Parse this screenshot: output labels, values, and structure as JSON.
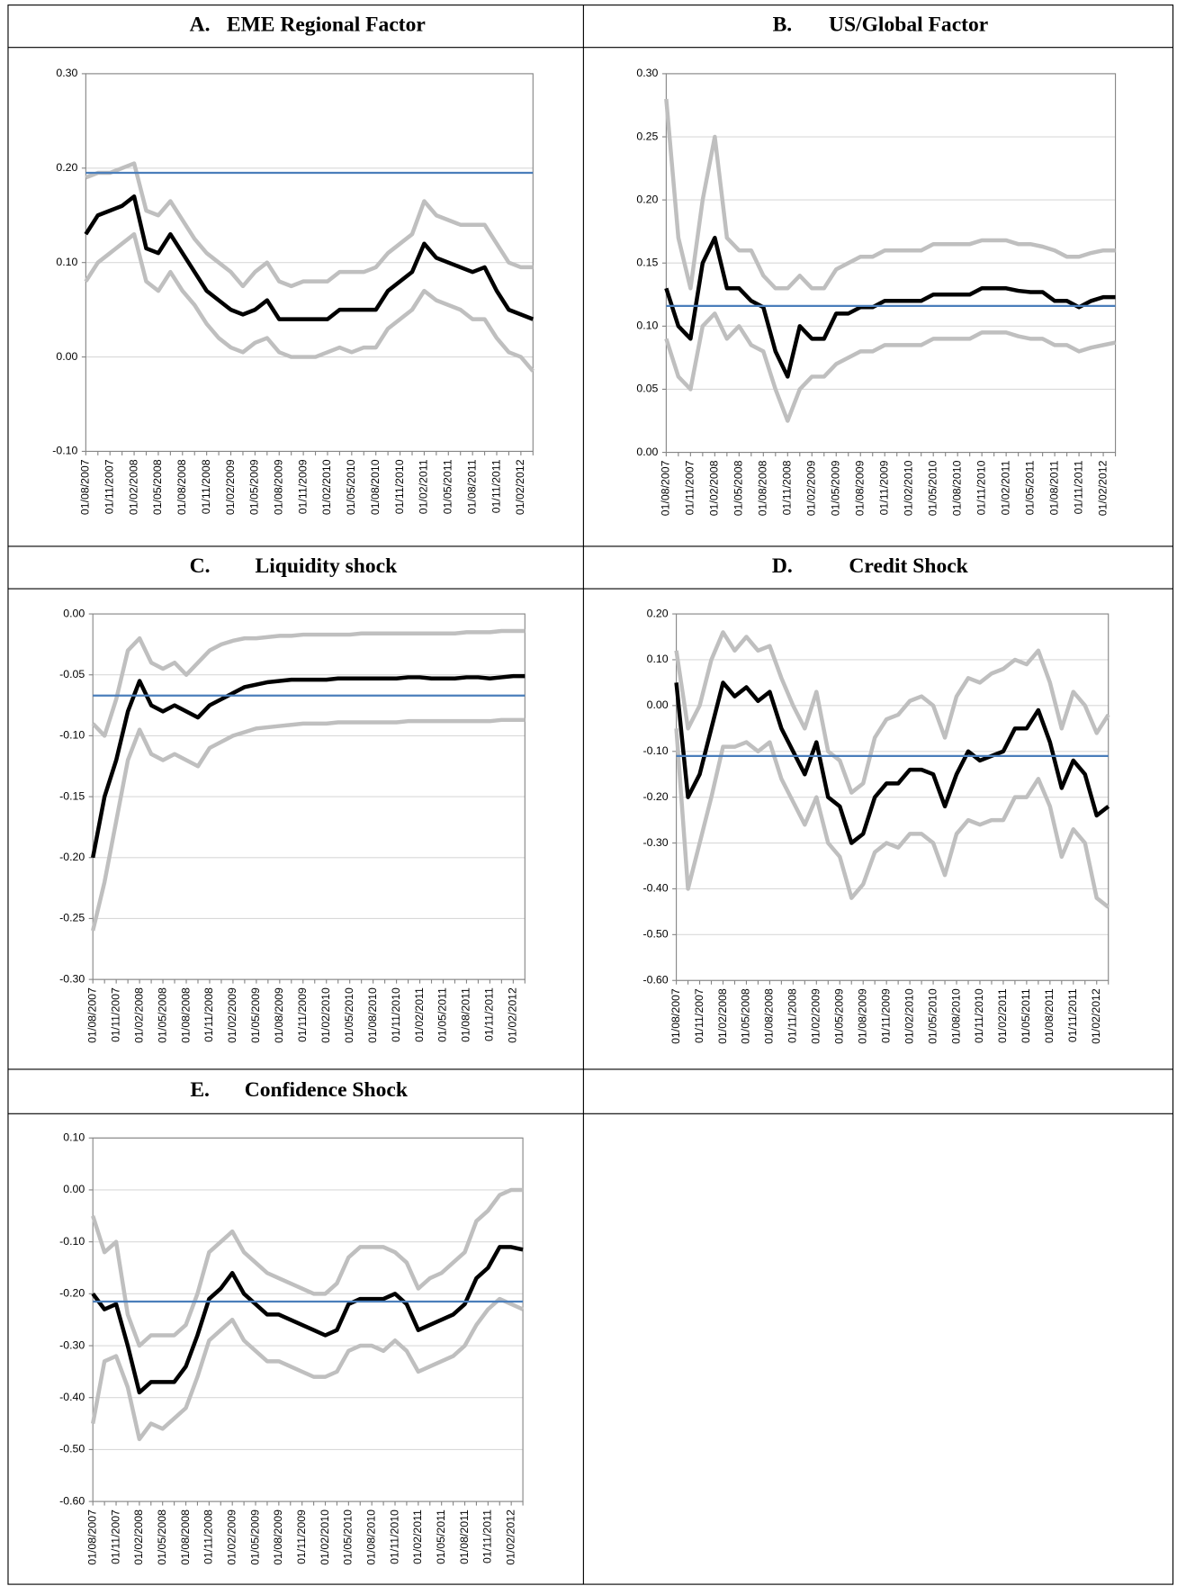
{
  "chart_data": [
    {
      "type": "line",
      "panel": "A.",
      "title": "EME Regional Factor",
      "categories": [
        "01/08/2007",
        null,
        "01/11/2007",
        null,
        "01/02/2008",
        null,
        "01/05/2008",
        null,
        "01/08/2008",
        null,
        "01/11/2008",
        null,
        "01/02/2009",
        null,
        "01/05/2009",
        null,
        "01/08/2009",
        null,
        "01/11/2009",
        null,
        "01/02/2010",
        null,
        "01/05/2010",
        null,
        "01/08/2010",
        null,
        "01/11/2010",
        null,
        "01/02/2011",
        null,
        "01/05/2011",
        null,
        "01/08/2011",
        null,
        "01/11/2011",
        null,
        "01/02/2012",
        null
      ],
      "series": [
        {
          "color": "#bfbfbf",
          "values": [
            0.19,
            0.195,
            0.195,
            0.2,
            0.205,
            0.155,
            0.15,
            0.165,
            0.145,
            0.125,
            0.11,
            0.1,
            0.09,
            0.075,
            0.09,
            0.1,
            0.08,
            0.075,
            0.08,
            0.08,
            0.08,
            0.09,
            0.09,
            0.09,
            0.095,
            0.11,
            0.12,
            0.13,
            0.165,
            0.15,
            0.145,
            0.14,
            0.14,
            0.14,
            0.12,
            0.1,
            0.095,
            0.095
          ]
        },
        {
          "color": "#bfbfbf",
          "values": [
            0.08,
            0.1,
            0.11,
            0.12,
            0.13,
            0.08,
            0.07,
            0.09,
            0.07,
            0.055,
            0.035,
            0.02,
            0.01,
            0.005,
            0.015,
            0.02,
            0.005,
            0.0,
            0.0,
            0.0,
            0.005,
            0.01,
            0.005,
            0.01,
            0.01,
            0.03,
            0.04,
            0.05,
            0.07,
            0.06,
            0.055,
            0.05,
            0.04,
            0.04,
            0.02,
            0.005,
            0.0,
            -0.015
          ]
        },
        {
          "color": "#000000",
          "values": [
            0.13,
            0.15,
            0.155,
            0.16,
            0.17,
            0.115,
            0.11,
            0.13,
            0.11,
            0.09,
            0.07,
            0.06,
            0.05,
            0.045,
            0.05,
            0.06,
            0.04,
            0.04,
            0.04,
            0.04,
            0.04,
            0.05,
            0.05,
            0.05,
            0.05,
            0.07,
            0.08,
            0.09,
            0.12,
            0.105,
            0.1,
            0.095,
            0.09,
            0.095,
            0.07,
            0.05,
            0.045,
            0.04
          ]
        }
      ],
      "hline": {
        "value": 0.195,
        "color": "#4a7ebb"
      },
      "ylim": [
        -0.1,
        0.3
      ],
      "yticks": [
        {
          "value": -0.1,
          "label": "-0.10"
        },
        {
          "value": 0,
          "label": "0.00"
        },
        {
          "value": 0.1,
          "label": "0.10"
        },
        {
          "value": 0.2,
          "label": "0.20"
        },
        {
          "value": 0.3,
          "label": "0.30"
        }
      ],
      "grid": true
    },
    {
      "type": "line",
      "panel": "B.",
      "title": "US/Global Factor",
      "categories": [
        "01/08/2007",
        null,
        "01/11/2007",
        null,
        "01/02/2008",
        null,
        "01/05/2008",
        null,
        "01/08/2008",
        null,
        "01/11/2008",
        null,
        "01/02/2009",
        null,
        "01/05/2009",
        null,
        "01/08/2009",
        null,
        "01/11/2009",
        null,
        "01/02/2010",
        null,
        "01/05/2010",
        null,
        "01/08/2010",
        null,
        "01/11/2010",
        null,
        "01/02/2011",
        null,
        "01/05/2011",
        null,
        "01/08/2011",
        null,
        "01/11/2011",
        null,
        "01/02/2012",
        null
      ],
      "series": [
        {
          "color": "#bfbfbf",
          "values": [
            0.28,
            0.17,
            0.13,
            0.2,
            0.25,
            0.17,
            0.16,
            0.16,
            0.14,
            0.13,
            0.13,
            0.14,
            0.13,
            0.13,
            0.145,
            0.15,
            0.155,
            0.155,
            0.16,
            0.16,
            0.16,
            0.16,
            0.165,
            0.165,
            0.165,
            0.165,
            0.168,
            0.168,
            0.168,
            0.165,
            0.165,
            0.163,
            0.16,
            0.155,
            0.155,
            0.158,
            0.16,
            0.16
          ]
        },
        {
          "color": "#bfbfbf",
          "values": [
            0.09,
            0.06,
            0.05,
            0.1,
            0.11,
            0.09,
            0.1,
            0.085,
            0.08,
            0.05,
            0.025,
            0.05,
            0.06,
            0.06,
            0.07,
            0.075,
            0.08,
            0.08,
            0.085,
            0.085,
            0.085,
            0.085,
            0.09,
            0.09,
            0.09,
            0.09,
            0.095,
            0.095,
            0.095,
            0.092,
            0.09,
            0.09,
            0.085,
            0.085,
            0.08,
            0.083,
            0.085,
            0.087
          ]
        },
        {
          "color": "#000000",
          "values": [
            0.13,
            0.1,
            0.09,
            0.15,
            0.17,
            0.13,
            0.13,
            0.12,
            0.115,
            0.08,
            0.06,
            0.1,
            0.09,
            0.09,
            0.11,
            0.11,
            0.115,
            0.115,
            0.12,
            0.12,
            0.12,
            0.12,
            0.125,
            0.125,
            0.125,
            0.125,
            0.13,
            0.13,
            0.13,
            0.128,
            0.127,
            0.127,
            0.12,
            0.12,
            0.115,
            0.12,
            0.123,
            0.123
          ]
        }
      ],
      "hline": {
        "value": 0.116,
        "color": "#4a7ebb"
      },
      "ylim": [
        0,
        0.3
      ],
      "yticks": [
        {
          "value": 0,
          "label": "0.00"
        },
        {
          "value": 0.05,
          "label": "0.05"
        },
        {
          "value": 0.1,
          "label": "0.10"
        },
        {
          "value": 0.15,
          "label": "0.15"
        },
        {
          "value": 0.2,
          "label": "0.20"
        },
        {
          "value": 0.25,
          "label": "0.25"
        },
        {
          "value": 0.3,
          "label": "0.30"
        }
      ],
      "grid": true
    },
    {
      "type": "line",
      "panel": "C.",
      "title": "Liquidity shock",
      "categories": [
        "01/08/2007",
        null,
        "01/11/2007",
        null,
        "01/02/2008",
        null,
        "01/05/2008",
        null,
        "01/08/2008",
        null,
        "01/11/2008",
        null,
        "01/02/2009",
        null,
        "01/05/2009",
        null,
        "01/08/2009",
        null,
        "01/11/2009",
        null,
        "01/02/2010",
        null,
        "01/05/2010",
        null,
        "01/08/2010",
        null,
        "01/11/2010",
        null,
        "01/02/2011",
        null,
        "01/05/2011",
        null,
        "01/08/2011",
        null,
        "01/11/2011",
        null,
        "01/02/2012",
        null
      ],
      "series": [
        {
          "color": "#bfbfbf",
          "values": [
            -0.09,
            -0.1,
            -0.07,
            -0.03,
            -0.02,
            -0.04,
            -0.045,
            -0.04,
            -0.05,
            -0.04,
            -0.03,
            -0.025,
            -0.022,
            -0.02,
            -0.02,
            -0.019,
            -0.018,
            -0.018,
            -0.017,
            -0.017,
            -0.017,
            -0.017,
            -0.017,
            -0.016,
            -0.016,
            -0.016,
            -0.016,
            -0.016,
            -0.016,
            -0.016,
            -0.016,
            -0.016,
            -0.015,
            -0.015,
            -0.015,
            -0.014,
            -0.014,
            -0.014
          ]
        },
        {
          "color": "#bfbfbf",
          "values": [
            -0.26,
            -0.22,
            -0.17,
            -0.12,
            -0.095,
            -0.115,
            -0.12,
            -0.115,
            -0.12,
            -0.125,
            -0.11,
            -0.105,
            -0.1,
            -0.097,
            -0.094,
            -0.093,
            -0.092,
            -0.091,
            -0.09,
            -0.09,
            -0.09,
            -0.089,
            -0.089,
            -0.089,
            -0.089,
            -0.089,
            -0.089,
            -0.088,
            -0.088,
            -0.088,
            -0.088,
            -0.088,
            -0.088,
            -0.088,
            -0.088,
            -0.087,
            -0.087,
            -0.087
          ]
        },
        {
          "color": "#000000",
          "values": [
            -0.2,
            -0.15,
            -0.12,
            -0.08,
            -0.055,
            -0.075,
            -0.08,
            -0.075,
            -0.08,
            -0.085,
            -0.075,
            -0.07,
            -0.065,
            -0.06,
            -0.058,
            -0.056,
            -0.055,
            -0.054,
            -0.054,
            -0.054,
            -0.054,
            -0.053,
            -0.053,
            -0.053,
            -0.053,
            -0.053,
            -0.053,
            -0.052,
            -0.052,
            -0.053,
            -0.053,
            -0.053,
            -0.052,
            -0.052,
            -0.053,
            -0.052,
            -0.051,
            -0.051
          ]
        }
      ],
      "hline": {
        "value": -0.067,
        "color": "#4a7ebb"
      },
      "ylim": [
        -0.3,
        0
      ],
      "yticks": [
        {
          "value": -0.3,
          "label": "-0.30"
        },
        {
          "value": -0.25,
          "label": "-0.25"
        },
        {
          "value": -0.2,
          "label": "-0.20"
        },
        {
          "value": -0.15,
          "label": "-0.15"
        },
        {
          "value": -0.1,
          "label": "-0.10"
        },
        {
          "value": -0.05,
          "label": "-0.05"
        },
        {
          "value": 0,
          "label": "0.00"
        }
      ],
      "grid": true
    },
    {
      "type": "line",
      "panel": "D.",
      "title": "Credit Shock",
      "categories": [
        "01/08/2007",
        null,
        "01/11/2007",
        null,
        "01/02/2008",
        null,
        "01/05/2008",
        null,
        "01/08/2008",
        null,
        "01/11/2008",
        null,
        "01/02/2009",
        null,
        "01/05/2009",
        null,
        "01/08/2009",
        null,
        "01/11/2009",
        null,
        "01/02/2010",
        null,
        "01/05/2010",
        null,
        "01/08/2010",
        null,
        "01/11/2010",
        null,
        "01/02/2011",
        null,
        "01/05/2011",
        null,
        "01/08/2011",
        null,
        "01/11/2011",
        null,
        "01/02/2012",
        null
      ],
      "series": [
        {
          "color": "#bfbfbf",
          "values": [
            0.12,
            -0.05,
            0.0,
            0.1,
            0.16,
            0.12,
            0.15,
            0.12,
            0.13,
            0.06,
            0.0,
            -0.05,
            0.03,
            -0.1,
            -0.12,
            -0.19,
            -0.17,
            -0.07,
            -0.03,
            -0.02,
            0.01,
            0.02,
            0.0,
            -0.07,
            0.02,
            0.06,
            0.05,
            0.07,
            0.08,
            0.1,
            0.09,
            0.12,
            0.05,
            -0.05,
            0.03,
            0.0,
            -0.06,
            -0.02
          ]
        },
        {
          "color": "#bfbfbf",
          "values": [
            -0.05,
            -0.4,
            -0.3,
            -0.2,
            -0.09,
            -0.09,
            -0.08,
            -0.1,
            -0.08,
            -0.16,
            -0.21,
            -0.26,
            -0.2,
            -0.3,
            -0.33,
            -0.42,
            -0.39,
            -0.32,
            -0.3,
            -0.31,
            -0.28,
            -0.28,
            -0.3,
            -0.37,
            -0.28,
            -0.25,
            -0.26,
            -0.25,
            -0.25,
            -0.2,
            -0.2,
            -0.16,
            -0.22,
            -0.33,
            -0.27,
            -0.3,
            -0.42,
            -0.44
          ]
        },
        {
          "color": "#000000",
          "values": [
            0.05,
            -0.2,
            -0.15,
            -0.05,
            0.05,
            0.02,
            0.04,
            0.01,
            0.03,
            -0.05,
            -0.1,
            -0.15,
            -0.08,
            -0.2,
            -0.22,
            -0.3,
            -0.28,
            -0.2,
            -0.17,
            -0.17,
            -0.14,
            -0.14,
            -0.15,
            -0.22,
            -0.15,
            -0.1,
            -0.12,
            -0.11,
            -0.1,
            -0.05,
            -0.05,
            -0.01,
            -0.08,
            -0.18,
            -0.12,
            -0.15,
            -0.24,
            -0.22
          ]
        }
      ],
      "hline": {
        "value": -0.11,
        "color": "#4a7ebb"
      },
      "ylim": [
        -0.6,
        0.2
      ],
      "yticks": [
        {
          "value": -0.6,
          "label": "-0.60"
        },
        {
          "value": -0.5,
          "label": "-0.50"
        },
        {
          "value": -0.4,
          "label": "-0.40"
        },
        {
          "value": -0.3,
          "label": "-0.30"
        },
        {
          "value": -0.2,
          "label": "-0.20"
        },
        {
          "value": -0.1,
          "label": "-0.10"
        },
        {
          "value": 0,
          "label": "0.00"
        },
        {
          "value": 0.1,
          "label": "0.10"
        },
        {
          "value": 0.2,
          "label": "0.20"
        }
      ],
      "grid": true
    },
    {
      "type": "line",
      "panel": "E.",
      "title": "Confidence Shock",
      "categories": [
        "01/08/2007",
        null,
        "01/11/2007",
        null,
        "01/02/2008",
        null,
        "01/05/2008",
        null,
        "01/08/2008",
        null,
        "01/11/2008",
        null,
        "01/02/2009",
        null,
        "01/05/2009",
        null,
        "01/08/2009",
        null,
        "01/11/2009",
        null,
        "01/02/2010",
        null,
        "01/05/2010",
        null,
        "01/08/2010",
        null,
        "01/11/2010",
        null,
        "01/02/2011",
        null,
        "01/05/2011",
        null,
        "01/08/2011",
        null,
        "01/11/2011",
        null,
        "01/02/2012",
        null
      ],
      "series": [
        {
          "color": "#bfbfbf",
          "values": [
            -0.05,
            -0.12,
            -0.1,
            -0.24,
            -0.3,
            -0.28,
            -0.28,
            -0.28,
            -0.26,
            -0.2,
            -0.12,
            -0.1,
            -0.08,
            -0.12,
            -0.14,
            -0.16,
            -0.17,
            -0.18,
            -0.19,
            -0.2,
            -0.2,
            -0.18,
            -0.13,
            -0.11,
            -0.11,
            -0.11,
            -0.12,
            -0.14,
            -0.19,
            -0.17,
            -0.16,
            -0.14,
            -0.12,
            -0.06,
            -0.04,
            -0.01,
            0.0,
            0.0
          ]
        },
        {
          "color": "#bfbfbf",
          "values": [
            -0.45,
            -0.33,
            -0.32,
            -0.38,
            -0.48,
            -0.45,
            -0.46,
            -0.44,
            -0.42,
            -0.36,
            -0.29,
            -0.27,
            -0.25,
            -0.29,
            -0.31,
            -0.33,
            -0.33,
            -0.34,
            -0.35,
            -0.36,
            -0.36,
            -0.35,
            -0.31,
            -0.3,
            -0.3,
            -0.31,
            -0.29,
            -0.31,
            -0.35,
            -0.34,
            -0.33,
            -0.32,
            -0.3,
            -0.26,
            -0.23,
            -0.21,
            -0.22,
            -0.23
          ]
        },
        {
          "color": "#000000",
          "values": [
            -0.2,
            -0.23,
            -0.22,
            -0.3,
            -0.39,
            -0.37,
            -0.37,
            -0.37,
            -0.34,
            -0.28,
            -0.21,
            -0.19,
            -0.16,
            -0.2,
            -0.22,
            -0.24,
            -0.24,
            -0.25,
            -0.26,
            -0.27,
            -0.28,
            -0.27,
            -0.22,
            -0.21,
            -0.21,
            -0.21,
            -0.2,
            -0.22,
            -0.27,
            -0.26,
            -0.25,
            -0.24,
            -0.22,
            -0.17,
            -0.15,
            -0.11,
            -0.11,
            -0.115
          ]
        }
      ],
      "hline": {
        "value": -0.215,
        "color": "#4a7ebb"
      },
      "ylim": [
        -0.6,
        0.1
      ],
      "yticks": [
        {
          "value": -0.6,
          "label": "-0.60"
        },
        {
          "value": -0.5,
          "label": "-0.50"
        },
        {
          "value": -0.4,
          "label": "-0.40"
        },
        {
          "value": -0.3,
          "label": "-0.30"
        },
        {
          "value": -0.2,
          "label": "-0.20"
        },
        {
          "value": -0.1,
          "label": "-0.10"
        },
        {
          "value": 0,
          "label": "0.00"
        },
        {
          "value": 0.1,
          "label": "0.10"
        }
      ],
      "grid": true
    }
  ]
}
